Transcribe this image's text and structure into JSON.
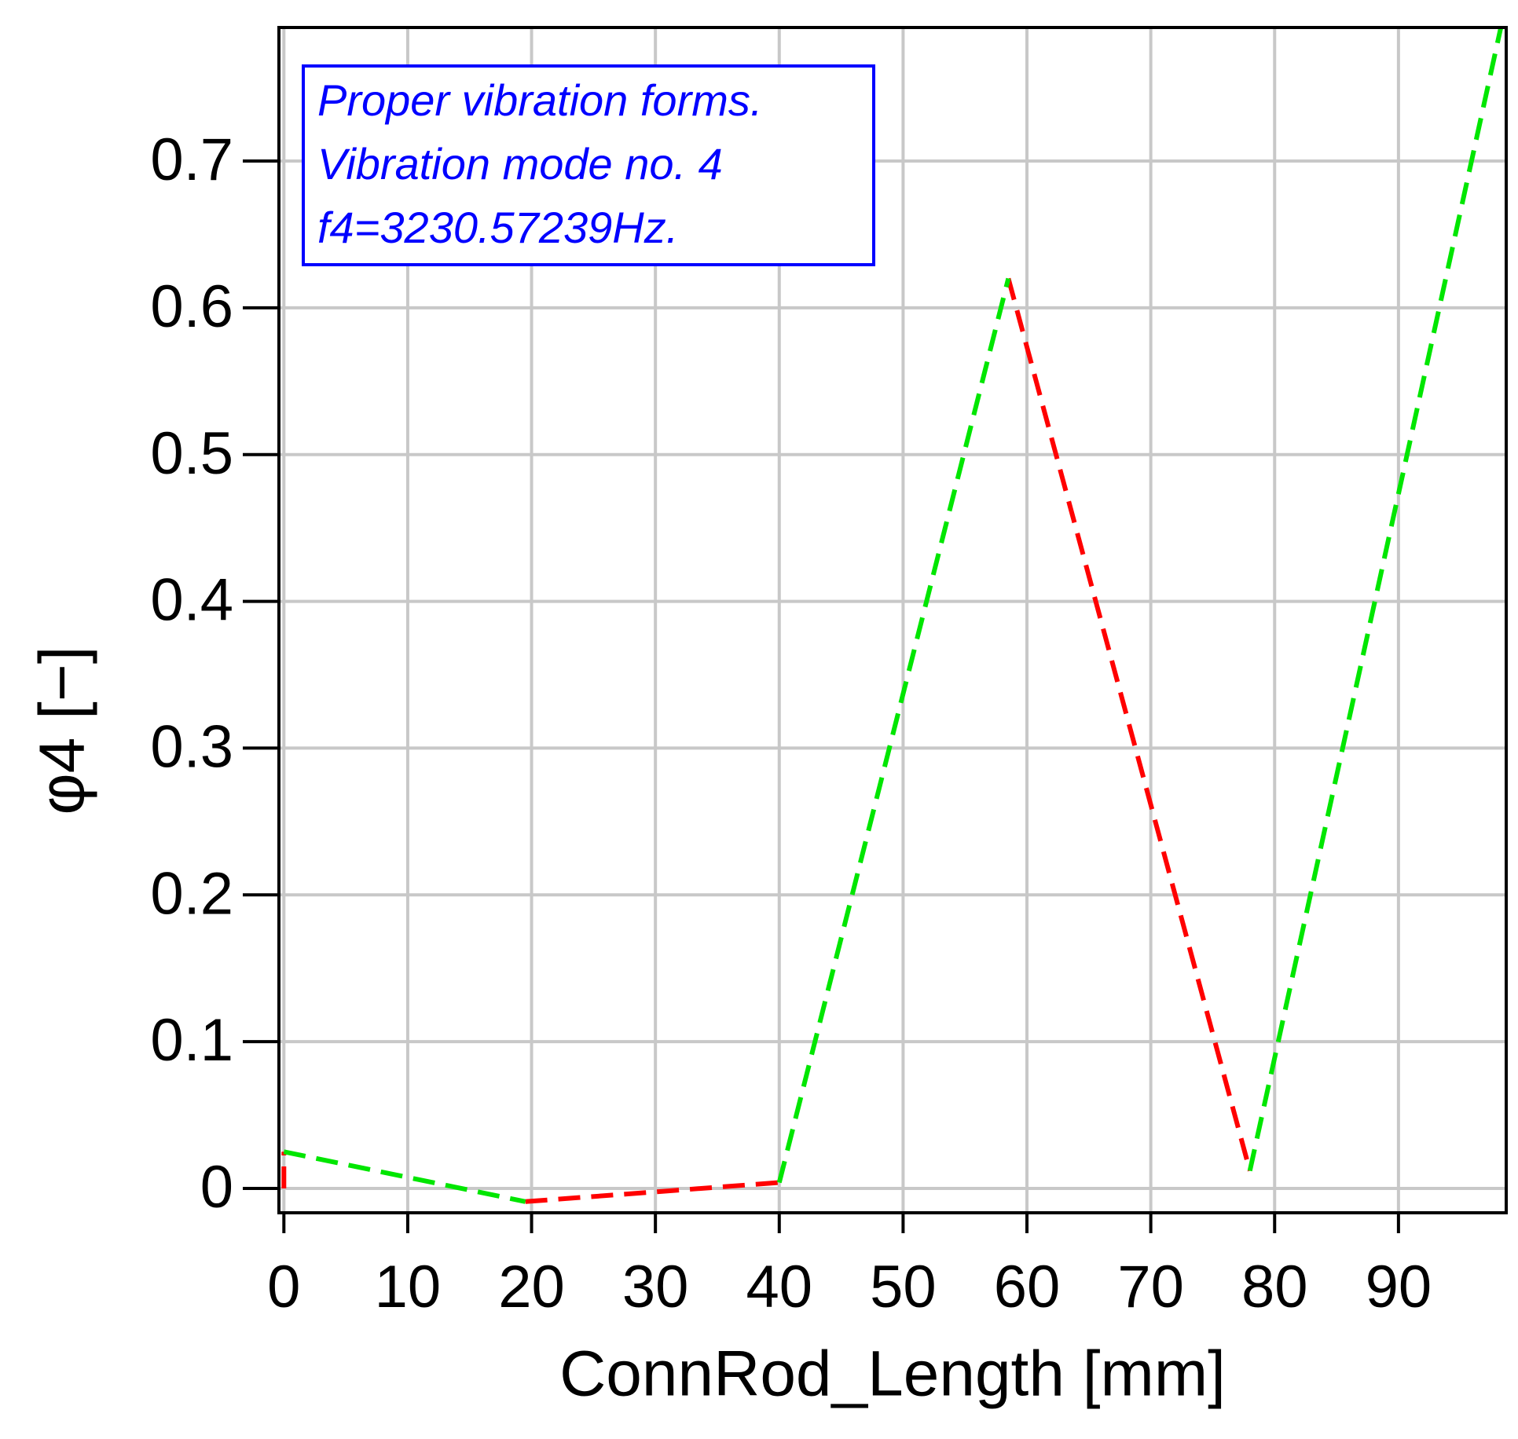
{
  "chart_data": {
    "type": "line",
    "annotation": [
      "Proper vibration forms.",
      "Vibration mode no. 4",
      "f4=3230.57239Hz."
    ],
    "x_label": "ConnRod_Length [mm]",
    "y_label": "φ4 [−]",
    "series": [
      {
        "color": "#ff0000",
        "dashed": true,
        "x": [
          0,
          0,
          null,
          19.5,
          40,
          null,
          58.5,
          78
        ],
        "values": [
          0,
          0.025,
          null,
          -0.009,
          0.004,
          null,
          0.62,
          0.012
        ]
      },
      {
        "color": "#00e600",
        "dashed": true,
        "x": [
          0,
          19.5,
          null,
          40,
          58.5,
          null,
          78,
          98.5
        ],
        "values": [
          0.025,
          -0.009,
          null,
          0.004,
          0.62,
          null,
          0.012,
          0.8
        ]
      }
    ],
    "xlim": [
      -0.4,
      98.7
    ],
    "ylim": [
      -0.0166,
      0.791
    ],
    "xticks": [
      0,
      10,
      20,
      30,
      40,
      50,
      60,
      70,
      80,
      90
    ],
    "yticks": [
      0,
      0.1,
      0.2,
      0.3,
      0.4,
      0.5,
      0.6,
      0.7
    ],
    "grid": true
  }
}
